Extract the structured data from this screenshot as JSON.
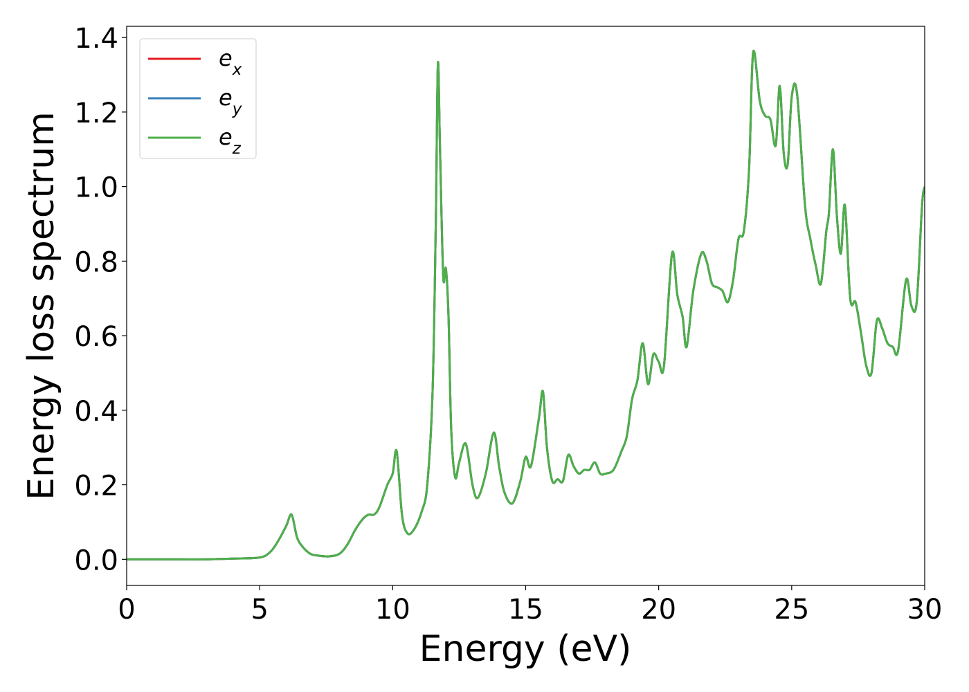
{
  "chart_data": {
    "type": "line",
    "title": "",
    "xlabel": "Energy (eV)",
    "ylabel": "Energy loss spectrum",
    "xlim": [
      0,
      30
    ],
    "ylim": [
      -0.07,
      1.43
    ],
    "xticks": [
      0,
      5,
      10,
      15,
      20,
      25,
      30
    ],
    "yticks": [
      0.0,
      0.2,
      0.4,
      0.6,
      0.8,
      1.0,
      1.2,
      1.4
    ],
    "xtick_labels": [
      "0",
      "5",
      "10",
      "15",
      "20",
      "25",
      "30"
    ],
    "ytick_labels": [
      "0.0",
      "0.2",
      "0.4",
      "0.6",
      "0.8",
      "1.0",
      "1.2",
      "1.4"
    ],
    "grid": false,
    "legend_position": "upper-left",
    "series": [
      {
        "name": "e_x",
        "label_base": "e",
        "label_sub": "x",
        "color": "#e41a1c",
        "ref": "ez"
      },
      {
        "name": "e_y",
        "label_base": "e",
        "label_sub": "y",
        "color": "#377eb8",
        "ref": "ez"
      },
      {
        "name": "e_z",
        "label_base": "e",
        "label_sub": "z",
        "color": "#4daf4a",
        "ref": "ez"
      }
    ],
    "ez": {
      "x": [
        0,
        1,
        2,
        3,
        4,
        5,
        5.4,
        5.7,
        6.0,
        6.2,
        6.4,
        6.6,
        6.9,
        7.2,
        7.6,
        8.0,
        8.3,
        8.6,
        8.9,
        9.1,
        9.3,
        9.5,
        9.8,
        10.0,
        10.15,
        10.35,
        10.55,
        10.8,
        11.1,
        11.3,
        11.5,
        11.62,
        11.7,
        11.78,
        11.9,
        12.0,
        12.1,
        12.2,
        12.35,
        12.5,
        12.75,
        13.0,
        13.2,
        13.5,
        13.8,
        14.0,
        14.2,
        14.5,
        14.8,
        15.0,
        15.2,
        15.5,
        15.65,
        15.8,
        16.0,
        16.2,
        16.4,
        16.6,
        16.8,
        17.0,
        17.2,
        17.4,
        17.6,
        17.8,
        18.0,
        18.3,
        18.6,
        18.8,
        19.0,
        19.2,
        19.4,
        19.6,
        19.8,
        20.0,
        20.2,
        20.5,
        20.7,
        20.9,
        21.05,
        21.3,
        21.6,
        21.8,
        22.0,
        22.2,
        22.4,
        22.6,
        22.8,
        23.0,
        23.2,
        23.4,
        23.55,
        23.8,
        24.0,
        24.2,
        24.4,
        24.55,
        24.7,
        24.85,
        25.0,
        25.2,
        25.5,
        25.7,
        25.9,
        26.1,
        26.3,
        26.4,
        26.55,
        26.7,
        26.85,
        27.0,
        27.2,
        27.4,
        27.6,
        27.8,
        28.0,
        28.2,
        28.4,
        28.6,
        28.8,
        29.0,
        29.3,
        29.5,
        29.7,
        29.9,
        30.0
      ],
      "y": [
        0.0,
        0.0,
        0.0,
        0.0,
        0.002,
        0.005,
        0.02,
        0.05,
        0.09,
        0.12,
        0.06,
        0.035,
        0.015,
        0.01,
        0.008,
        0.015,
        0.04,
        0.08,
        0.11,
        0.12,
        0.12,
        0.14,
        0.2,
        0.23,
        0.29,
        0.12,
        0.07,
        0.08,
        0.13,
        0.2,
        0.45,
        0.9,
        1.33,
        1.1,
        0.76,
        0.78,
        0.65,
        0.35,
        0.22,
        0.26,
        0.31,
        0.2,
        0.165,
        0.23,
        0.34,
        0.25,
        0.18,
        0.15,
        0.21,
        0.275,
        0.25,
        0.38,
        0.45,
        0.3,
        0.21,
        0.215,
        0.21,
        0.28,
        0.25,
        0.23,
        0.24,
        0.24,
        0.26,
        0.23,
        0.23,
        0.24,
        0.29,
        0.33,
        0.43,
        0.48,
        0.58,
        0.47,
        0.55,
        0.53,
        0.52,
        0.82,
        0.71,
        0.65,
        0.57,
        0.72,
        0.82,
        0.8,
        0.74,
        0.73,
        0.72,
        0.69,
        0.75,
        0.86,
        0.88,
        1.05,
        1.36,
        1.23,
        1.19,
        1.18,
        1.11,
        1.27,
        1.09,
        1.06,
        1.24,
        1.25,
        0.95,
        0.86,
        0.79,
        0.74,
        0.88,
        0.93,
        1.1,
        0.92,
        0.82,
        0.95,
        0.7,
        0.69,
        0.61,
        0.52,
        0.5,
        0.64,
        0.62,
        0.58,
        0.57,
        0.56,
        0.75,
        0.68,
        0.69,
        0.95,
        1.0
      ]
    }
  }
}
